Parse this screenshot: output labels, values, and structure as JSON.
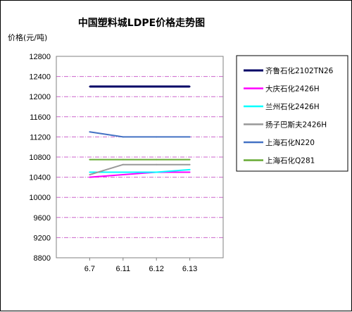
{
  "chart_data": {
    "type": "line",
    "title": "中国塑料城LDPE价格走势图",
    "ylabel": "价格(元/吨)",
    "xlabel": "",
    "categories": [
      "6.7",
      "6.11",
      "6.12",
      "6.13"
    ],
    "ylim": [
      8800,
      12800
    ],
    "yticks": [
      8800,
      9200,
      9600,
      10000,
      10400,
      10800,
      11200,
      11600,
      12000,
      12400,
      12800
    ],
    "grid": "horizontal dash-dot, pink",
    "legend": "right",
    "series": [
      {
        "name": "齐鲁石化2102TN26",
        "color": "#000066",
        "values": [
          12200,
          12200,
          12200,
          12200
        ]
      },
      {
        "name": "大庆石化2426H",
        "color": "#ff00ff",
        "values": [
          10400,
          10450,
          10500,
          10500
        ]
      },
      {
        "name": "兰州石化2426H",
        "color": "#00ffff",
        "values": [
          10500,
          10500,
          10500,
          10550
        ]
      },
      {
        "name": "扬子巴斯夫2426H",
        "color": "#999999",
        "values": [
          10450,
          10650,
          10650,
          10650
        ]
      },
      {
        "name": "上海石化N220",
        "color": "#4472c4",
        "values": [
          11300,
          11200,
          11200,
          11200
        ]
      },
      {
        "name": "上海石化Q281",
        "color": "#66aa33",
        "values": [
          10750,
          10750,
          10750,
          10750
        ]
      }
    ]
  }
}
